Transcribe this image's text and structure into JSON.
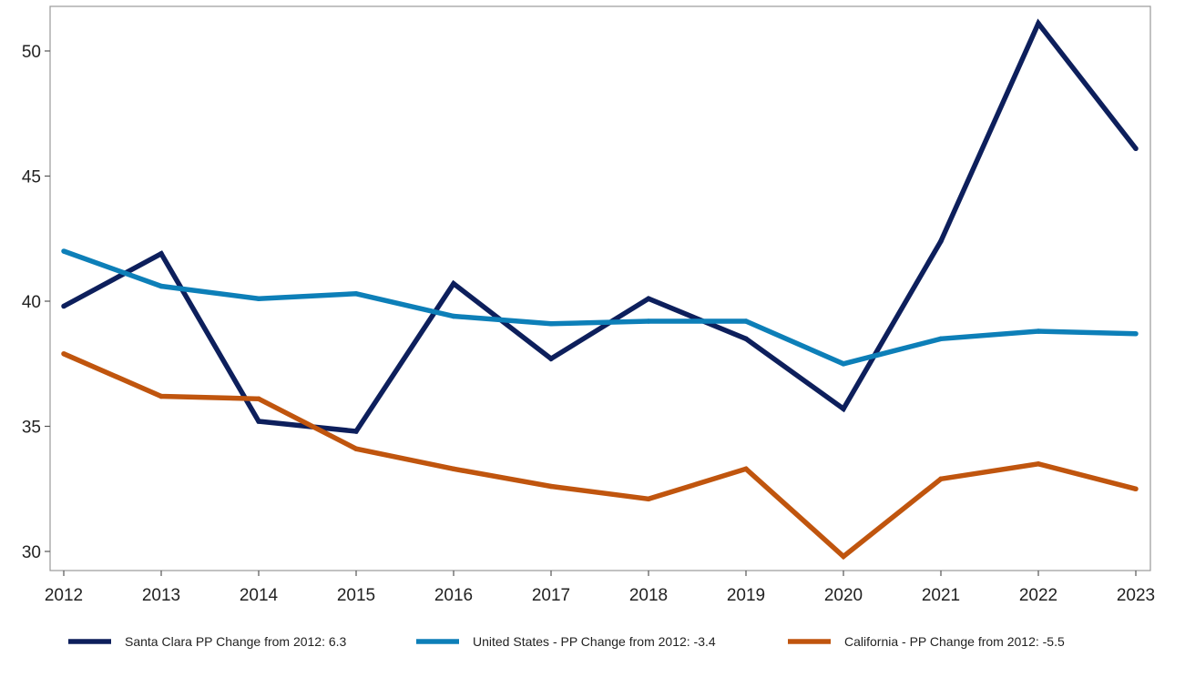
{
  "chart_data": {
    "type": "line",
    "title": "",
    "xlabel": "",
    "ylabel": "",
    "x": [
      2012,
      2013,
      2014,
      2015,
      2016,
      2017,
      2018,
      2019,
      2020,
      2021,
      2022,
      2023
    ],
    "x_tick_labels": [
      "2012",
      "2013",
      "2014",
      "2015",
      "2016",
      "2017",
      "2018",
      "2019",
      "2020",
      "2021",
      "2022",
      "2023"
    ],
    "y_ticks": [
      30,
      35,
      40,
      45,
      50
    ],
    "y_tick_labels": [
      "30",
      "35",
      "40",
      "45",
      "50"
    ],
    "xlim": [
      2012,
      2023
    ],
    "ylim": [
      29.3,
      51.8
    ],
    "grid": false,
    "legend_position": "bottom",
    "series": [
      {
        "name": "Santa Clara PP Change from 2012: 6.3",
        "color": "#0d1f5c",
        "values": [
          39.8,
          41.9,
          35.2,
          34.8,
          40.7,
          37.7,
          40.1,
          38.5,
          35.7,
          42.4,
          51.1,
          46.1
        ]
      },
      {
        "name": "United States - PP Change from 2012: -3.4",
        "color": "#0d7fb8",
        "values": [
          42.0,
          40.6,
          40.1,
          40.3,
          39.4,
          39.1,
          39.2,
          39.2,
          37.5,
          38.5,
          38.8,
          38.7
        ]
      },
      {
        "name": "California - PP Change from 2012: -5.5",
        "color": "#c0550e",
        "values": [
          37.9,
          36.2,
          36.1,
          34.1,
          33.3,
          32.6,
          32.1,
          33.3,
          29.8,
          32.9,
          33.5,
          32.5
        ]
      }
    ]
  }
}
